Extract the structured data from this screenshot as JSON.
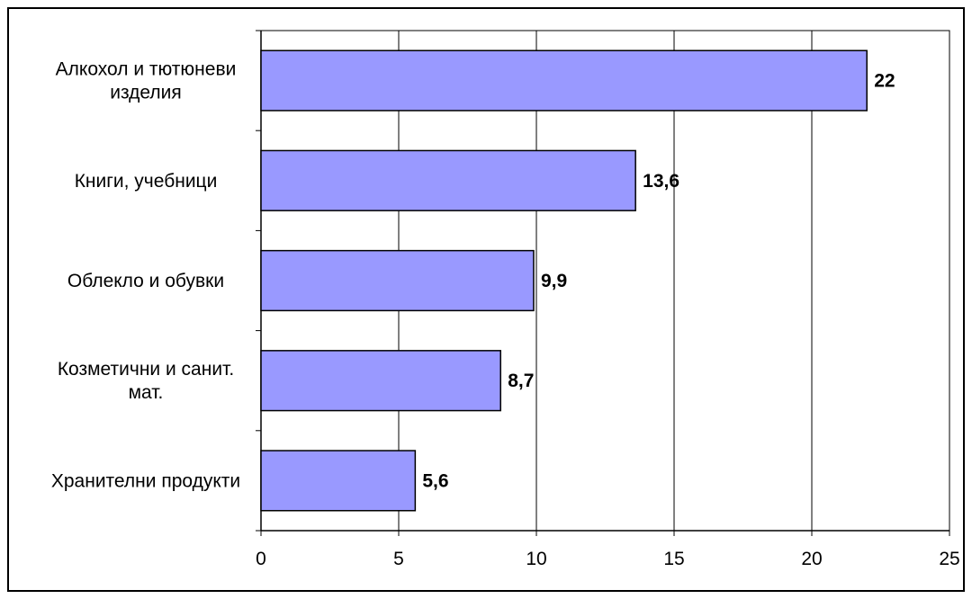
{
  "chart_data": {
    "type": "bar",
    "orientation": "horizontal",
    "categories": [
      [
        "Алкохол и тютюневи",
        "изделия"
      ],
      [
        "Книги,  учебници"
      ],
      [
        "Облекло и обувки"
      ],
      [
        "Козметични и санит.",
        "мат."
      ],
      [
        "Хранителни продукти"
      ]
    ],
    "values": [
      22,
      13.6,
      9.9,
      8.7,
      5.6
    ],
    "data_labels": [
      "22",
      "13,6",
      "9,9",
      "8,7",
      "5,6"
    ],
    "x_ticks": [
      "0",
      "5",
      "10",
      "15",
      "20",
      "25"
    ],
    "xlim": [
      0,
      25
    ],
    "grid": "vertical",
    "legend": "none",
    "colors": {
      "bar_fill": "#9999FF",
      "bar_stroke": "#000000",
      "grid": "#000000"
    }
  }
}
